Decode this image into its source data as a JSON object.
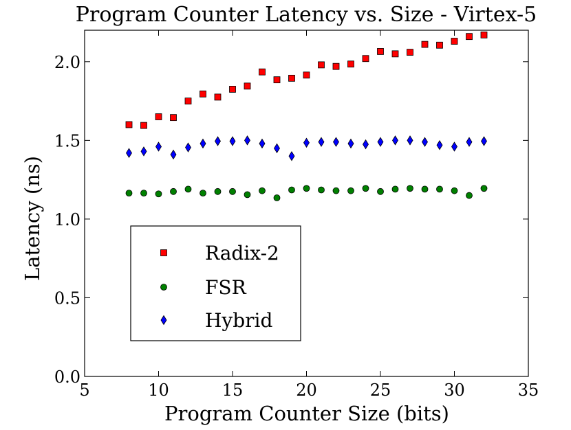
{
  "chart_data": {
    "type": "scatter",
    "title": "Program Counter Latency vs. Size - Virtex-5",
    "xlabel": "Program Counter Size (bits)",
    "ylabel": "Latency (ns)",
    "xlim": [
      5,
      35
    ],
    "ylim": [
      0.0,
      2.2
    ],
    "xticks": [
      "5",
      "10",
      "15",
      "20",
      "25",
      "30",
      "35"
    ],
    "yticks": [
      "0.0",
      "0.5",
      "1.0",
      "1.5",
      "2.0"
    ],
    "xtick_values": [
      5,
      10,
      15,
      20,
      25,
      30,
      35
    ],
    "ytick_values": [
      0.0,
      0.5,
      1.0,
      1.5,
      2.0
    ],
    "grid": false,
    "legend_position": "lower-left",
    "x": [
      8,
      9,
      10,
      11,
      12,
      13,
      14,
      15,
      16,
      17,
      18,
      19,
      20,
      21,
      22,
      23,
      24,
      25,
      26,
      27,
      28,
      29,
      30,
      31,
      32
    ],
    "series": [
      {
        "name": "Radix-2",
        "marker": "square",
        "color": "#ff0000",
        "values": [
          1.6,
          1.595,
          1.65,
          1.645,
          1.75,
          1.795,
          1.775,
          1.825,
          1.845,
          1.935,
          1.885,
          1.895,
          1.915,
          1.98,
          1.97,
          1.985,
          2.02,
          2.065,
          2.05,
          2.06,
          2.11,
          2.105,
          2.13,
          2.16,
          2.17
        ]
      },
      {
        "name": "FSR",
        "marker": "circle",
        "color": "#008000",
        "values": [
          1.165,
          1.165,
          1.16,
          1.175,
          1.19,
          1.165,
          1.175,
          1.175,
          1.155,
          1.18,
          1.135,
          1.185,
          1.195,
          1.185,
          1.18,
          1.18,
          1.195,
          1.175,
          1.19,
          1.195,
          1.19,
          1.19,
          1.18,
          1.15,
          1.195
        ]
      },
      {
        "name": "Hybrid",
        "marker": "diamond",
        "color": "#0000ff",
        "values": [
          1.42,
          1.43,
          1.46,
          1.41,
          1.455,
          1.48,
          1.495,
          1.495,
          1.5,
          1.48,
          1.45,
          1.4,
          1.485,
          1.49,
          1.49,
          1.48,
          1.475,
          1.49,
          1.5,
          1.5,
          1.49,
          1.47,
          1.46,
          1.49,
          1.495
        ]
      }
    ]
  }
}
